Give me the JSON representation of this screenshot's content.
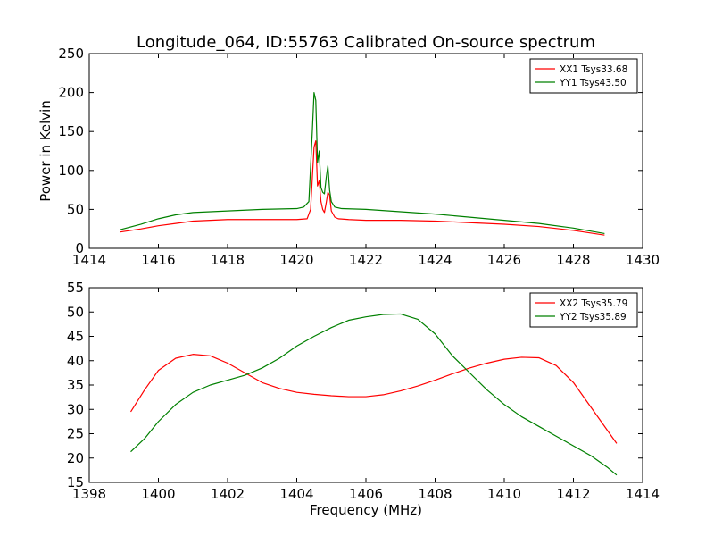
{
  "figure": {
    "title": "Longitude_064, ID:55763 Calibrated On-source spectrum",
    "ylabel_top": "Power in Kelvin",
    "xlabel_bottom": "Frequency (MHz)"
  },
  "colors": {
    "red": "#ff0000",
    "green": "#008000",
    "axes": "#000000"
  },
  "chart_data": [
    {
      "type": "line",
      "title": "Longitude_064, ID:55763 Calibrated On-source spectrum",
      "xlabel": "",
      "ylabel": "Power in Kelvin",
      "xlim": [
        1414,
        1430
      ],
      "ylim": [
        0,
        250
      ],
      "xticks": [
        1414,
        1416,
        1418,
        1420,
        1422,
        1424,
        1426,
        1428,
        1430
      ],
      "yticks": [
        0,
        50,
        100,
        150,
        200,
        250
      ],
      "legend_position": "top-right",
      "grid": false,
      "series": [
        {
          "name": "XX1 Tsys33.68",
          "color": "#ff0000",
          "x": [
            1414.9,
            1415.5,
            1416.0,
            1416.5,
            1417.0,
            1417.5,
            1418.0,
            1419.0,
            1420.0,
            1420.3,
            1420.4,
            1420.5,
            1420.55,
            1420.6,
            1420.65,
            1420.7,
            1420.75,
            1420.8,
            1420.85,
            1420.9,
            1420.95,
            1421.0,
            1421.1,
            1421.2,
            1421.5,
            1422.0,
            1423.0,
            1424.0,
            1425.0,
            1426.0,
            1427.0,
            1428.0,
            1428.9
          ],
          "y": [
            21,
            25,
            29,
            32,
            35,
            36,
            37,
            37,
            37,
            38,
            50,
            130,
            138,
            80,
            87,
            60,
            50,
            46,
            58,
            72,
            68,
            48,
            40,
            38,
            37,
            36,
            36,
            35,
            33,
            31,
            28,
            23,
            17
          ]
        },
        {
          "name": "YY1 Tsys43.50",
          "color": "#008000",
          "x": [
            1414.9,
            1415.5,
            1416.0,
            1416.5,
            1417.0,
            1418.0,
            1419.0,
            1420.0,
            1420.2,
            1420.35,
            1420.45,
            1420.5,
            1420.55,
            1420.6,
            1420.65,
            1420.7,
            1420.75,
            1420.8,
            1420.85,
            1420.9,
            1420.95,
            1421.0,
            1421.1,
            1421.3,
            1422.0,
            1423.0,
            1424.0,
            1425.0,
            1426.0,
            1427.0,
            1428.0,
            1428.9
          ],
          "y": [
            24,
            31,
            38,
            43,
            46,
            48,
            50,
            51,
            53,
            60,
            150,
            200,
            190,
            110,
            125,
            78,
            72,
            70,
            90,
            106,
            75,
            60,
            53,
            51,
            50,
            47,
            44,
            40,
            36,
            32,
            26,
            19
          ]
        }
      ]
    },
    {
      "type": "line",
      "title": "",
      "xlabel": "Frequency (MHz)",
      "ylabel": "",
      "xlim": [
        1398,
        1414
      ],
      "ylim": [
        15,
        55
      ],
      "xticks": [
        1398,
        1400,
        1402,
        1404,
        1406,
        1408,
        1410,
        1412,
        1414
      ],
      "yticks": [
        15,
        20,
        25,
        30,
        35,
        40,
        45,
        50,
        55
      ],
      "legend_position": "top-right",
      "grid": false,
      "series": [
        {
          "name": "XX2 Tsys35.79",
          "color": "#ff0000",
          "x": [
            1399.2,
            1399.6,
            1400.0,
            1400.5,
            1401.0,
            1401.5,
            1402.0,
            1402.5,
            1403.0,
            1403.5,
            1404.0,
            1404.5,
            1405.0,
            1405.5,
            1406.0,
            1406.5,
            1407.0,
            1407.5,
            1408.0,
            1408.5,
            1409.0,
            1409.5,
            1410.0,
            1410.5,
            1411.0,
            1411.5,
            1412.0,
            1412.5,
            1413.0,
            1413.25
          ],
          "y": [
            29.5,
            34,
            38,
            40.5,
            41.3,
            41,
            39.5,
            37.5,
            35.5,
            34.3,
            33.5,
            33.1,
            32.8,
            32.6,
            32.6,
            33,
            33.8,
            34.8,
            36,
            37.3,
            38.5,
            39.5,
            40.3,
            40.7,
            40.6,
            39,
            35.5,
            30.5,
            25.5,
            23
          ]
        },
        {
          "name": "YY2 Tsys35.89",
          "color": "#008000",
          "x": [
            1399.2,
            1399.6,
            1400.0,
            1400.5,
            1401.0,
            1401.5,
            1402.0,
            1402.5,
            1403.0,
            1403.5,
            1404.0,
            1404.5,
            1405.0,
            1405.5,
            1406.0,
            1406.5,
            1407.0,
            1407.5,
            1408.0,
            1408.5,
            1409.0,
            1409.5,
            1410.0,
            1410.5,
            1411.0,
            1411.5,
            1412.0,
            1412.5,
            1413.0,
            1413.25
          ],
          "y": [
            21.3,
            24,
            27.5,
            31,
            33.5,
            35,
            36,
            37,
            38.5,
            40.5,
            43,
            45,
            46.8,
            48.3,
            49,
            49.5,
            49.6,
            48.5,
            45.5,
            41,
            37.5,
            34,
            31,
            28.5,
            26.5,
            24.5,
            22.5,
            20.5,
            18,
            16.5
          ]
        }
      ]
    }
  ]
}
